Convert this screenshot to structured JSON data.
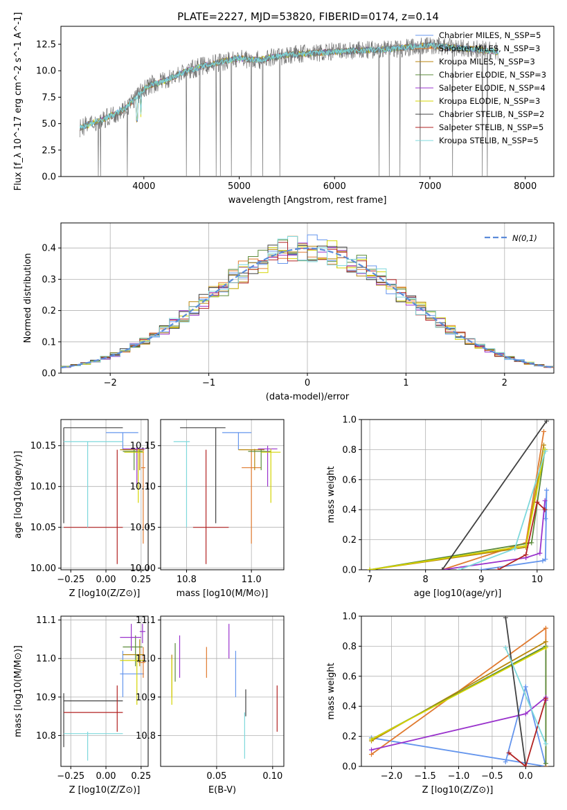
{
  "figure_title": "PLATE=2227, MJD=53820, FIBERID=0174, z=0.14",
  "series_labels": [
    "Chabrier MILES, N_SSP=5",
    "Salpeter MILES, N_SSP=3",
    "Kroupa MILES, N_SSP=3",
    "Chabrier ELODIE, N_SSP=3",
    "Salpeter ELODIE, N_SSP=4",
    "Kroupa ELODIE, N_SSP=3",
    "Chabrier STELIB, N_SSP=2",
    "Salpeter STELIB, N_SSP=5",
    "Kroupa STELIB, N_SSP=5"
  ],
  "series_colors": [
    "#6495ed",
    "#e07a2f",
    "#b8860b",
    "#5a8a3a",
    "#9932cc",
    "#d4d400",
    "#404040",
    "#b22222",
    "#7dd8dc"
  ],
  "chart_data": [
    {
      "id": "spectrum",
      "type": "line",
      "title": "PLATE=2227, MJD=53820, FIBERID=0174, z=0.14",
      "xlabel": "wavelength [Angstrom, rest frame]",
      "ylabel": "Flux [f_λ 10^-17 erg cm^-2 s^-1 A^-1]",
      "xlim": [
        3130,
        8300
      ],
      "ylim": [
        0,
        14.2
      ],
      "xticks": [
        4000,
        5000,
        6000,
        7000,
        8000
      ],
      "yticks": [
        0.0,
        2.5,
        5.0,
        7.5,
        10.0,
        12.5
      ],
      "grid": false,
      "legend": "top-right",
      "continuum": {
        "x": [
          3330,
          3450,
          3600,
          3800,
          3950,
          4050,
          4200,
          4400,
          4600,
          4800,
          5000,
          5200,
          5500,
          6000,
          6500,
          7000,
          7500,
          7700
        ],
        "y": [
          4.6,
          5.0,
          5.5,
          6.4,
          7.8,
          8.6,
          9.0,
          9.8,
          10.4,
          10.8,
          11.2,
          11.0,
          11.5,
          11.8,
          12.0,
          12.4,
          12.0,
          11.8
        ]
      }
    },
    {
      "id": "residuals",
      "type": "step",
      "xlabel": "(data-model)/error",
      "ylabel": "Normed distribution",
      "xlim": [
        -2.5,
        2.5
      ],
      "ylim": [
        0,
        0.48
      ],
      "xticks": [
        -2,
        -1,
        0,
        1,
        2
      ],
      "yticks": [
        0.0,
        0.1,
        0.2,
        0.3,
        0.4
      ],
      "grid": true,
      "legend": "top-right",
      "reference_label": "N(0,1)",
      "reference_color": "#5b8bd9"
    },
    {
      "id": "age_vs_Z",
      "type": "errorbar",
      "xlabel": "Z [log10(Z/Z⊙)]",
      "ylabel": "age [log10(age/yr)]",
      "xlim": [
        -0.32,
        0.3
      ],
      "ylim": [
        9.998,
        10.182
      ],
      "xticks": [
        -0.25,
        0.0,
        0.25
      ],
      "yticks": [
        10.0,
        10.05,
        10.1,
        10.15
      ],
      "points": [
        {
          "s": 0,
          "x": 0.12,
          "y": 10.166,
          "xl": 0.0,
          "xh": 0.23,
          "yl": 10.145,
          "yh": 10.166
        },
        {
          "s": 1,
          "x": 0.265,
          "y": 10.123,
          "xl": 0.25,
          "xh": 0.28,
          "yl": 10.03,
          "yh": 10.145
        },
        {
          "s": 2,
          "x": 0.24,
          "y": 10.145,
          "xl": 0.1,
          "xh": 0.27,
          "yl": 10.12,
          "yh": 10.146
        },
        {
          "s": 3,
          "x": 0.2,
          "y": 10.143,
          "xl": 0.12,
          "xh": 0.26,
          "yl": 10.12,
          "yh": 10.146
        },
        {
          "s": 4,
          "x": 0.22,
          "y": 10.146,
          "xl": 0.12,
          "xh": 0.28,
          "yl": 10.1,
          "yh": 10.15
        },
        {
          "s": 5,
          "x": 0.23,
          "y": 10.142,
          "xl": 0.13,
          "xh": 0.27,
          "yl": 10.08,
          "yh": 10.146
        },
        {
          "s": 6,
          "x": -0.3,
          "y": 10.172,
          "xl": -0.3,
          "xh": 0.12,
          "yl": 10.055,
          "yh": 10.172
        },
        {
          "s": 7,
          "x": 0.08,
          "y": 10.05,
          "xl": -0.3,
          "xh": 0.12,
          "yl": 10.005,
          "yh": 10.145
        },
        {
          "s": 8,
          "x": -0.13,
          "y": 10.155,
          "xl": -0.3,
          "xh": 0.12,
          "yl": 10.05,
          "yh": 10.155
        }
      ]
    },
    {
      "id": "age_vs_mass",
      "type": "errorbar",
      "xlabel": "mass [log10(M/M⊙)]",
      "ylabel": "",
      "xlim": [
        10.72,
        11.1
      ],
      "ylim": [
        9.998,
        10.182
      ],
      "xticks": [
        10.8,
        11.0
      ],
      "yticks": [
        10.0,
        10.05,
        10.1,
        10.15
      ],
      "points": [
        {
          "s": 0,
          "x": 10.96,
          "y": 10.166,
          "xl": 10.91,
          "xh": 11.0,
          "yl": 10.145,
          "yh": 10.166
        },
        {
          "s": 1,
          "x": 11.0,
          "y": 10.123,
          "xl": 10.97,
          "xh": 11.03,
          "yl": 10.03,
          "yh": 10.145
        },
        {
          "s": 2,
          "x": 11.01,
          "y": 10.145,
          "xl": 10.96,
          "xh": 11.04,
          "yl": 10.12,
          "yh": 10.146
        },
        {
          "s": 3,
          "x": 11.03,
          "y": 10.143,
          "xl": 10.99,
          "xh": 11.06,
          "yl": 10.12,
          "yh": 10.146
        },
        {
          "s": 4,
          "x": 11.05,
          "y": 10.146,
          "xl": 11.02,
          "xh": 11.08,
          "yl": 10.1,
          "yh": 10.15
        },
        {
          "s": 5,
          "x": 11.06,
          "y": 10.142,
          "xl": 11.03,
          "xh": 11.09,
          "yl": 10.08,
          "yh": 10.146
        },
        {
          "s": 6,
          "x": 10.89,
          "y": 10.172,
          "xl": 10.78,
          "xh": 10.92,
          "yl": 10.055,
          "yh": 10.172
        },
        {
          "s": 7,
          "x": 10.86,
          "y": 10.05,
          "xl": 10.82,
          "xh": 10.93,
          "yl": 10.005,
          "yh": 10.145
        },
        {
          "s": 8,
          "x": 10.8,
          "y": 10.155,
          "xl": 10.76,
          "xh": 10.81,
          "yl": 10.05,
          "yh": 10.155
        }
      ]
    },
    {
      "id": "mass_vs_Z",
      "type": "errorbar",
      "xlabel": "Z [log10(Z/Z⊙)]",
      "ylabel": "mass [log10(M/M⊙)]",
      "xlim": [
        -0.32,
        0.3
      ],
      "ylim": [
        10.72,
        11.11
      ],
      "xticks": [
        -0.25,
        0.0,
        0.25
      ],
      "yticks": [
        10.8,
        10.9,
        11.0,
        11.1
      ],
      "points": [
        {
          "s": 0,
          "x": 0.12,
          "y": 10.96,
          "xl": 0.1,
          "xh": 0.27,
          "yl": 10.9,
          "yh": 11.02
        },
        {
          "s": 1,
          "x": 0.265,
          "y": 10.99,
          "xl": 0.23,
          "xh": 0.28,
          "yl": 10.95,
          "yh": 11.03
        },
        {
          "s": 2,
          "x": 0.24,
          "y": 11.01,
          "xl": 0.12,
          "xh": 0.27,
          "yl": 10.98,
          "yh": 11.05
        },
        {
          "s": 3,
          "x": 0.21,
          "y": 11.03,
          "xl": 0.12,
          "xh": 0.26,
          "yl": 10.98,
          "yh": 11.06
        },
        {
          "s": 4,
          "x": 0.18,
          "y": 11.055,
          "xl": 0.1,
          "xh": 0.25,
          "yl": 11.02,
          "yh": 11.09
        },
        {
          "s": 5,
          "x": 0.22,
          "y": 10.995,
          "xl": 0.1,
          "xh": 0.27,
          "yl": 10.88,
          "yh": 11.01
        },
        {
          "s": 6,
          "x": -0.3,
          "y": 10.89,
          "xl": -0.3,
          "xh": 0.12,
          "yl": 10.77,
          "yh": 10.91
        },
        {
          "s": 7,
          "x": 0.08,
          "y": 10.86,
          "xl": -0.3,
          "xh": 0.12,
          "yl": 10.81,
          "yh": 10.93
        },
        {
          "s": 8,
          "x": -0.13,
          "y": 10.805,
          "xl": -0.3,
          "xh": 0.12,
          "yl": 10.735,
          "yh": 10.81
        },
        {
          "s": 4,
          "x": 0.26,
          "y": 11.07,
          "xl": 0.24,
          "xh": 0.28,
          "yl": 11.04,
          "yh": 11.09
        }
      ]
    },
    {
      "id": "mass_vs_EBV",
      "type": "errorbar",
      "xlabel": "E(B-V)",
      "ylabel": "",
      "xlim": [
        0.0,
        0.11
      ],
      "ylim": [
        10.72,
        11.11
      ],
      "xticks": [
        0.05,
        0.1
      ],
      "yticks": [
        10.8,
        10.9,
        11.0,
        11.1
      ],
      "points": [
        {
          "s": 0,
          "x": 0.067,
          "y": 10.96,
          "yl": 10.9,
          "yh": 11.02
        },
        {
          "s": 1,
          "x": 0.041,
          "y": 10.99,
          "yl": 10.95,
          "yh": 11.03
        },
        {
          "s": 2,
          "x": 0.01,
          "y": 10.96,
          "yl": 10.9,
          "yh": 11.01
        },
        {
          "s": 3,
          "x": 0.013,
          "y": 11.0,
          "yl": 10.94,
          "yh": 11.04
        },
        {
          "s": 4,
          "x": 0.017,
          "y": 11.0,
          "yl": 10.95,
          "yh": 11.06
        },
        {
          "s": 5,
          "x": 0.01,
          "y": 10.93,
          "yl": 10.88,
          "yh": 11.0
        },
        {
          "s": 6,
          "x": 0.076,
          "y": 10.89,
          "yl": 10.85,
          "yh": 10.92
        },
        {
          "s": 7,
          "x": 0.104,
          "y": 10.87,
          "yl": 10.81,
          "yh": 10.93
        },
        {
          "s": 8,
          "x": 0.075,
          "y": 10.8,
          "yl": 10.74,
          "yh": 10.86
        },
        {
          "s": 4,
          "x": 0.061,
          "y": 11.04,
          "yl": 11.0,
          "yh": 11.09
        }
      ]
    },
    {
      "id": "weight_vs_age",
      "type": "line",
      "xlabel": "age [log10(age/yr)]",
      "ylabel": "mass weight",
      "xlim": [
        6.85,
        10.3
      ],
      "ylim": [
        0,
        1.0
      ],
      "xticks": [
        7,
        8,
        9,
        10
      ],
      "yticks": [
        0.0,
        0.2,
        0.4,
        0.6,
        0.8,
        1.0
      ],
      "grid": true,
      "series": [
        {
          "s": 0,
          "x": [
            9.0,
            10.1,
            10.15,
            10.17,
            10.15
          ],
          "y": [
            0.0,
            0.06,
            0.07,
            0.53,
            0.34
          ]
        },
        {
          "s": 1,
          "x": [
            8.3,
            9.8,
            10.12
          ],
          "y": [
            0.0,
            0.18,
            0.92
          ]
        },
        {
          "s": 2,
          "x": [
            7.0,
            9.8,
            10.12
          ],
          "y": [
            0.0,
            0.15,
            0.83
          ]
        },
        {
          "s": 3,
          "x": [
            7.0,
            9.9,
            10.14
          ],
          "y": [
            0.0,
            0.18,
            0.8
          ]
        },
        {
          "s": 4,
          "x": [
            8.3,
            9.8,
            10.05,
            10.14
          ],
          "y": [
            0.0,
            0.08,
            0.11,
            0.46
          ]
        },
        {
          "s": 5,
          "x": [
            7.0,
            9.8,
            10.14
          ],
          "y": [
            0.0,
            0.16,
            0.8
          ]
        },
        {
          "s": 6,
          "x": [
            8.3,
            10.17
          ],
          "y": [
            0.0,
            0.99
          ]
        },
        {
          "s": 7,
          "x": [
            9.3,
            9.8,
            10.0,
            10.14
          ],
          "y": [
            0.0,
            0.1,
            0.45,
            0.4
          ]
        },
        {
          "s": 8,
          "x": [
            8.6,
            9.6,
            10.15
          ],
          "y": [
            0.0,
            0.14,
            0.79
          ]
        }
      ]
    },
    {
      "id": "weight_vs_Z",
      "type": "line",
      "xlabel": "Z [log10(Z/Z⊙)]",
      "ylabel": "mass weight",
      "xlim": [
        -2.45,
        0.42
      ],
      "ylim": [
        0,
        1.0
      ],
      "xticks": [
        -2.0,
        -1.5,
        -1.0,
        -0.5,
        0.0
      ],
      "yticks": [
        0.0,
        0.2,
        0.4,
        0.6,
        0.8,
        1.0
      ],
      "grid": true,
      "series": [
        {
          "s": 0,
          "x": [
            -0.3,
            0.0,
            0.3,
            -2.3
          ],
          "y": [
            0.03,
            0.53,
            0.0,
            0.19
          ]
        },
        {
          "s": 1,
          "x": [
            -2.3,
            0.3,
            0.3
          ],
          "y": [
            0.08,
            0.92,
            0.0
          ]
        },
        {
          "s": 2,
          "x": [
            -2.3,
            0.3
          ],
          "y": [
            0.17,
            0.83
          ]
        },
        {
          "s": 3,
          "x": [
            -2.3,
            0.3,
            0.3
          ],
          "y": [
            0.18,
            0.8,
            0.02
          ]
        },
        {
          "s": 4,
          "x": [
            -2.3,
            0.0,
            0.3,
            0.3
          ],
          "y": [
            0.11,
            0.35,
            0.46,
            0.44
          ]
        },
        {
          "s": 5,
          "x": [
            -2.3,
            0.3
          ],
          "y": [
            0.18,
            0.79
          ]
        },
        {
          "s": 6,
          "x": [
            -0.3,
            0.0
          ],
          "y": [
            0.99,
            0.0
          ]
        },
        {
          "s": 7,
          "x": [
            -0.25,
            0.0,
            0.3
          ],
          "y": [
            0.09,
            0.0,
            0.45
          ]
        },
        {
          "s": 8,
          "x": [
            -0.3,
            0.3
          ],
          "y": [
            0.79,
            0.15
          ]
        }
      ]
    }
  ]
}
